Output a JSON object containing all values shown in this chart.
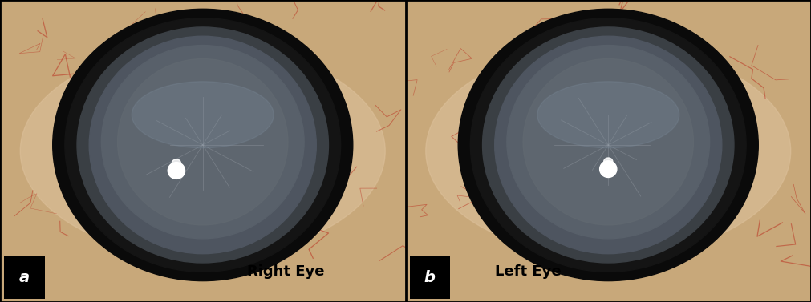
{
  "figure_width": 10.11,
  "figure_height": 3.77,
  "dpi": 100,
  "border_color": "#000000",
  "border_linewidth": 2,
  "panel_a_label": "a",
  "panel_b_label": "b",
  "label_right_eye": "Right Eye",
  "label_left_eye": "Left Eye",
  "label_fontsize": 13,
  "label_color": "#000000",
  "label_bg_color": "#000000",
  "label_text_color": "#ffffff",
  "panel_label_fontsize": 14,
  "background_color": "#000000"
}
